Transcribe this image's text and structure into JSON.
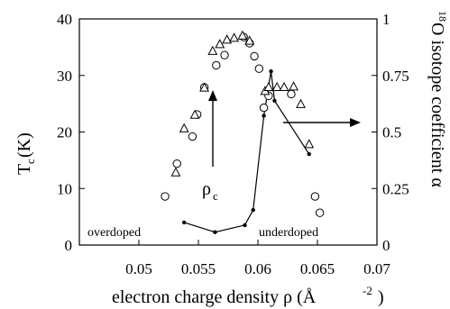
{
  "chart_data": {
    "type": "scatter",
    "xlabel": "electron charge density ρ  (Å",
    "xlabel_sup": "-2",
    "xlabel_close": ")",
    "ylabel_left": "T",
    "ylabel_left_sub": "c",
    "ylabel_left_unit": " (K)",
    "ylabel_right_pre": "18",
    "ylabel_right": "O isotope coefficient α",
    "xlim": [
      0.045,
      0.07
    ],
    "ylim_left": [
      0,
      40
    ],
    "ylim_right": [
      0,
      1
    ],
    "x_ticks": [
      "0.05",
      "0.055",
      "0.06",
      "0.065",
      "0.07"
    ],
    "x_tick_values": [
      0.05,
      0.055,
      0.06,
      0.065,
      0.07
    ],
    "y_left_ticks": [
      "0",
      "10",
      "20",
      "30",
      "40"
    ],
    "y_left_tick_values": [
      0,
      10,
      20,
      30,
      40
    ],
    "y_right_ticks": [
      "0",
      "0.25",
      "0.5",
      "0.75",
      "1"
    ],
    "y_right_tick_values": [
      0,
      0.25,
      0.5,
      0.75,
      1
    ],
    "series": [
      {
        "marker": "circle",
        "axis": "left",
        "x": [
          0.0522,
          0.0532,
          0.0545,
          0.0549,
          0.0555,
          0.0565,
          0.0572,
          0.0588,
          0.0593,
          0.0597,
          0.0601,
          0.0605,
          0.0609,
          0.0628,
          0.0648,
          0.0652
        ],
        "y": [
          8.6,
          14.4,
          19.2,
          23.1,
          27.9,
          31.8,
          33.6,
          36.8,
          35.7,
          33.4,
          31.2,
          24.3,
          26.4,
          26.7,
          8.6,
          5.7
        ]
      },
      {
        "marker": "triangle",
        "axis": "left",
        "x": [
          0.0531,
          0.0538,
          0.0547,
          0.0555,
          0.0562,
          0.0568,
          0.0574,
          0.058,
          0.0587,
          0.0593,
          0.0606,
          0.0609,
          0.0616,
          0.0622,
          0.063,
          0.0636,
          0.0643
        ],
        "y": [
          12.8,
          20.6,
          23.0,
          27.8,
          34.3,
          35.5,
          36.3,
          36.6,
          37.0,
          36.1,
          27.2,
          27.9,
          27.9,
          27.9,
          28.0,
          24.9,
          17.8
        ]
      },
      {
        "marker": "dot-line",
        "axis": "right",
        "x": [
          0.0538,
          0.0564,
          0.0589,
          0.0596,
          0.0605,
          0.0611,
          0.0614,
          0.0643
        ],
        "y": [
          0.1,
          0.057,
          0.088,
          0.155,
          0.572,
          0.768,
          0.638,
          0.402
        ]
      }
    ],
    "annotations": {
      "overdoped": "overdoped",
      "underdoped": "underdoped",
      "rho": "ρ",
      "rho_sub": "c"
    },
    "grid": false,
    "legend": "none"
  }
}
